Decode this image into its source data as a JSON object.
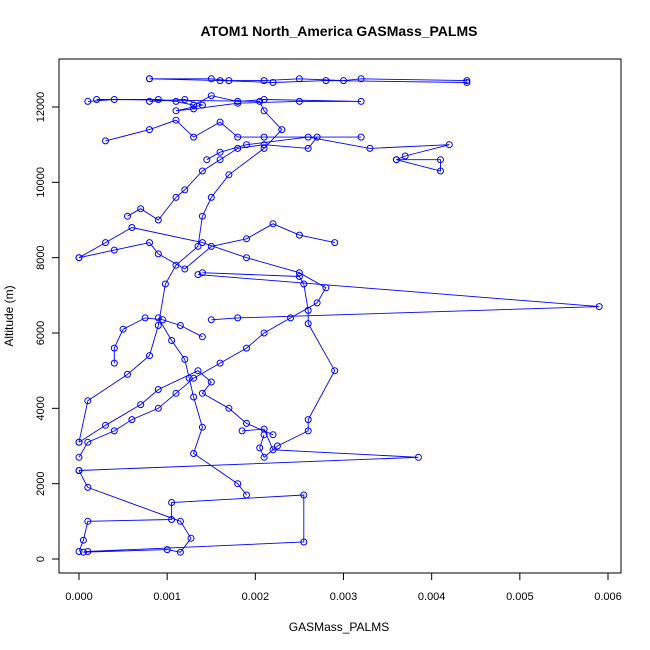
{
  "chart_data": {
    "type": "line",
    "title": "ATOM1 North_America GASMass_PALMS",
    "xlabel": "GASMass_PALMS",
    "ylabel": "Altitude (m)",
    "xlim": [
      0.0,
      0.0061
    ],
    "ylim": [
      0,
      13000
    ],
    "x_ticks": [
      "0.000",
      "0.001",
      "0.002",
      "0.003",
      "0.004",
      "0.005",
      "0.006"
    ],
    "x_tick_values": [
      0.0,
      0.001,
      0.002,
      0.003,
      0.004,
      0.005,
      0.006
    ],
    "y_ticks": [
      "0",
      "2000",
      "4000",
      "6000",
      "8000",
      "10000",
      "12000"
    ],
    "y_tick_values": [
      0,
      2000,
      4000,
      6000,
      8000,
      10000,
      12000
    ],
    "grid": false,
    "marker": "open-circle",
    "series_color": "#0000ff",
    "series": [
      {
        "x": [
          0.0,
          5e-05,
          0.0001,
          0.00105,
          0.00105,
          0.00255,
          0.00255,
          0.0001,
          5e-05,
          0.001,
          0.00115,
          0.00127,
          0.00115,
          0.0001,
          0.0
        ],
        "y": [
          200,
          500,
          1000,
          1050,
          1500,
          1700,
          450,
          200,
          180,
          250,
          180,
          550,
          1000,
          1900,
          2350
        ]
      },
      {
        "x": [
          0.0,
          0.0001,
          0.0004,
          0.0006,
          0.0009,
          0.0011,
          0.0013,
          0.0016,
          0.0019,
          0.0021,
          0.0024,
          0.0027,
          0.0028,
          0.0025,
          0.0019,
          0.0014,
          0.0006,
          0.0003,
          0.0
        ],
        "y": [
          2700,
          3100,
          3400,
          3700,
          4000,
          4400,
          4800,
          5200,
          5600,
          6000,
          6400,
          6800,
          7200,
          7600,
          8000,
          8400,
          8800,
          8400,
          8000
        ]
      },
      {
        "x": [
          0.0,
          0.0001,
          0.00055,
          0.0008,
          0.0009,
          0.00098,
          0.0011,
          0.00135,
          0.0014,
          0.0015,
          0.0017,
          0.0021,
          0.0023,
          0.0021,
          0.00205,
          0.0004,
          0.0001
        ],
        "y": [
          3100,
          4200,
          4900,
          5400,
          6200,
          7300,
          7800,
          8300,
          9100,
          9600,
          10200,
          10900,
          11400,
          11900,
          12150,
          12200,
          12150
        ]
      },
      {
        "x": [
          0.0014,
          0.0025,
          0.00255,
          0.0026,
          0.0026,
          0.0029,
          0.0026,
          0.0026,
          0.00225,
          0.0021,
          0.00205,
          0.0021
        ],
        "y": [
          7600,
          7500,
          7300,
          6600,
          6250,
          5000,
          3700,
          3400,
          3000,
          2700,
          2950,
          3300
        ]
      },
      {
        "x": [
          0.00135,
          0.0059,
          0.0018,
          0.0015
        ],
        "y": [
          7550,
          6700,
          6400,
          6350
        ]
      },
      {
        "x": [
          0.0,
          0.0003,
          0.0007,
          0.0009,
          0.00135,
          0.0015,
          0.0014,
          0.0017,
          0.0019,
          0.0022
        ],
        "y": [
          3100,
          3550,
          4100,
          4500,
          5000,
          4700,
          4400,
          4000,
          3600,
          3300
        ]
      },
      {
        "x": [
          0.0,
          0.00385,
          0.0022,
          0.0021,
          0.00185
        ],
        "y": [
          2350,
          2700,
          2900,
          3450,
          3400
        ]
      },
      {
        "x": [
          0.0004,
          0.0004,
          0.0005,
          0.00075,
          0.00095,
          0.00115,
          0.0014
        ],
        "y": [
          5200,
          5600,
          6100,
          6400,
          6350,
          6200,
          5900
        ]
      },
      {
        "x": [
          0.0009,
          0.00105,
          0.0012,
          0.00125,
          0.0013,
          0.0014,
          0.0013,
          0.0018,
          0.0019
        ],
        "y": [
          6400,
          5800,
          5300,
          4800,
          4300,
          3500,
          2800,
          2000,
          1700
        ]
      },
      {
        "x": [
          0.0,
          0.0004,
          0.0008,
          0.0009,
          0.0012,
          0.0015,
          0.0019,
          0.0022,
          0.0025,
          0.0029
        ],
        "y": [
          8000,
          8200,
          8400,
          8100,
          7700,
          8300,
          8500,
          8900,
          8600,
          8400
        ]
      },
      {
        "x": [
          0.00055,
          0.0007,
          0.0009,
          0.0011,
          0.0012,
          0.0014,
          0.0016,
          0.0018,
          0.0021,
          0.0026,
          0.0027
        ],
        "y": [
          9100,
          9300,
          9000,
          9600,
          9800,
          10300,
          10600,
          10900,
          11000,
          10900,
          11200
        ]
      },
      {
        "x": [
          0.00145,
          0.0016,
          0.0019,
          0.0026,
          0.0033,
          0.0042,
          0.0037,
          0.0036,
          0.0041,
          0.0041,
          0.0036
        ],
        "y": [
          10600,
          10800,
          11000,
          11200,
          10900,
          11000,
          10700,
          10600,
          10600,
          10300,
          10600
        ]
      },
      {
        "x": [
          0.0008,
          0.0015,
          0.0017,
          0.0021,
          0.0025,
          0.003,
          0.0032,
          0.0044,
          0.0044,
          0.0028,
          0.0022,
          0.0016,
          0.0008
        ],
        "y": [
          12750,
          12750,
          12700,
          12700,
          12750,
          12700,
          12750,
          12700,
          12650,
          12700,
          12650,
          12700,
          12750
        ]
      },
      {
        "x": [
          0.0002,
          0.0009,
          0.0011,
          0.0013,
          0.0015,
          0.0018,
          0.0021,
          0.0032,
          0.0025,
          0.0018,
          0.0013,
          0.0011,
          0.0014,
          0.0012,
          0.0008
        ],
        "y": [
          12200,
          12200,
          12150,
          12050,
          12300,
          12150,
          12200,
          12150,
          12150,
          12100,
          11950,
          11900,
          12050,
          12200,
          12150
        ]
      },
      {
        "x": [
          0.0003,
          0.0008,
          0.0011,
          0.0013,
          0.0016,
          0.0018,
          0.0021,
          0.0032
        ],
        "y": [
          11100,
          11400,
          11650,
          11200,
          11600,
          11200,
          11200,
          11200
        ]
      }
    ]
  }
}
